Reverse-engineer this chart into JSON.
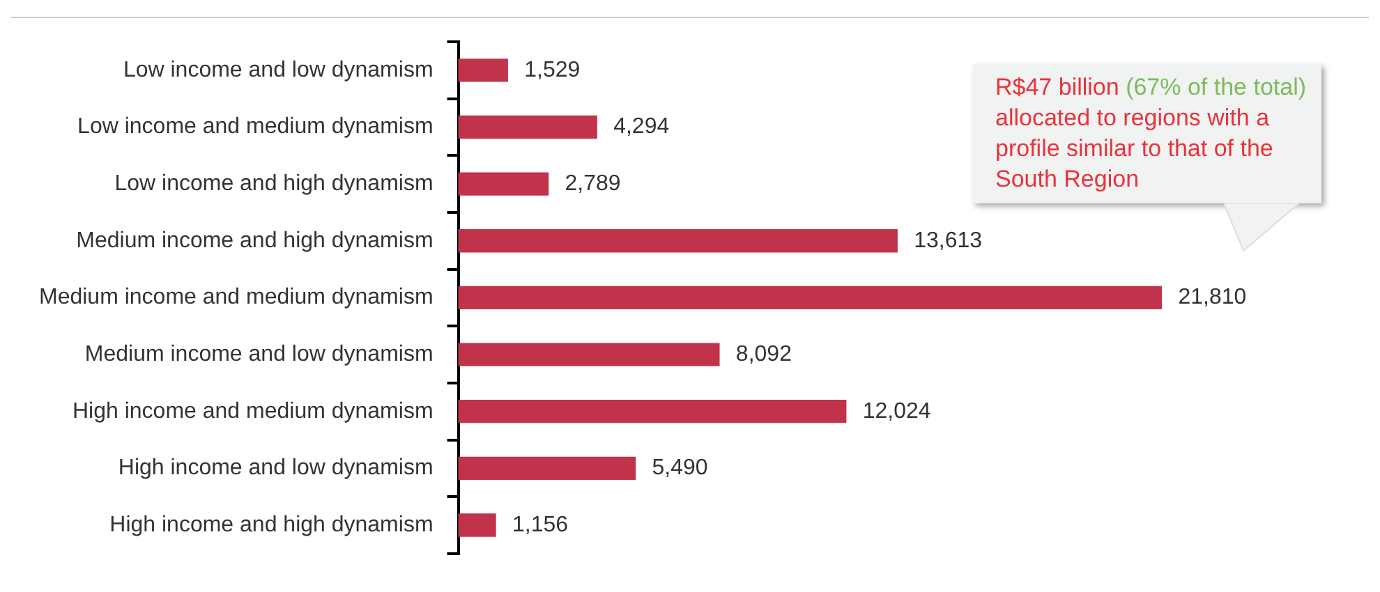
{
  "chart_data": {
    "type": "bar",
    "orientation": "horizontal",
    "categories": [
      "Low income and low dynamism",
      "Low income and medium dynamism",
      "Low income and high dynamism",
      "Medium income and high dynamism",
      "Medium income and medium dynamism",
      "Medium income and low dynamism",
      "High income and medium dynamism",
      "High income and low dynamism",
      "High income and high dynamism"
    ],
    "values": [
      1529,
      4294,
      2789,
      13613,
      21810,
      8092,
      12024,
      5490,
      1156
    ],
    "value_labels": [
      "1,529",
      "4,294",
      "2,789",
      "13,613",
      "21,810",
      "8,092",
      "12,024",
      "5,490",
      "1,156"
    ],
    "color": "#c0334a",
    "annotations": [
      "R$47 billion",
      "(67% of the total)",
      "allocated to regions with a profile similar to that of the South Region"
    ]
  }
}
